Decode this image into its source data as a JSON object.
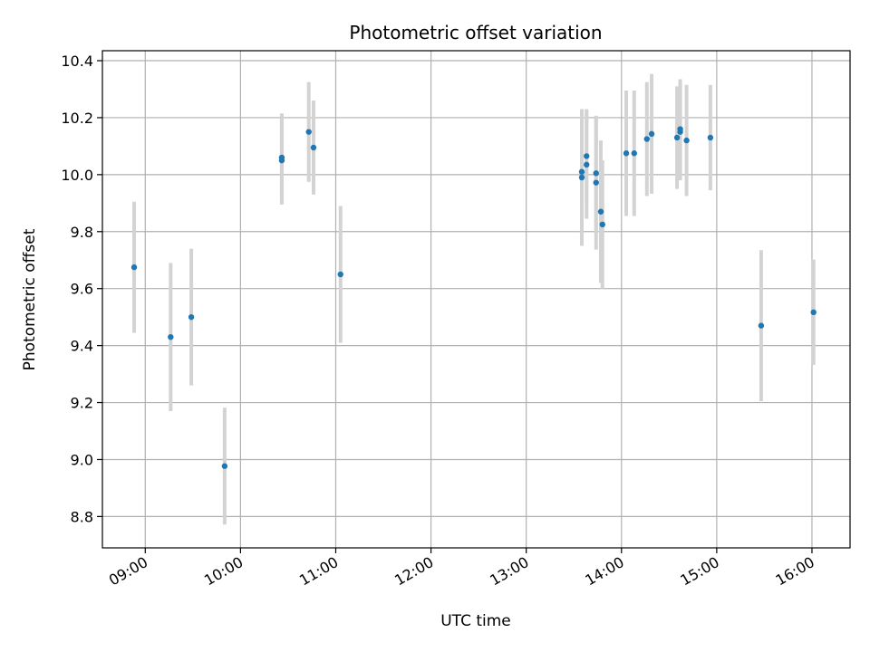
{
  "chart_data": {
    "type": "scatter",
    "title": "Photometric offset variation",
    "xlabel": "UTC time",
    "ylabel": "Photometric offset",
    "x_ticks": [
      "09:00",
      "10:00",
      "11:00",
      "12:00",
      "13:00",
      "14:00",
      "15:00",
      "16:00"
    ],
    "y_ticks": [
      "8.8",
      "9.0",
      "9.2",
      "9.4",
      "9.6",
      "9.8",
      "10.0",
      "10.2",
      "10.4"
    ],
    "xlim": [
      "08:33",
      "16:24"
    ],
    "ylim": [
      8.69,
      10.435
    ],
    "grid": true,
    "marker_color": "#1f77b4",
    "errorbar_color": "#d3d3d3",
    "points": [
      {
        "t": "08:53",
        "y": 9.675,
        "err": 0.23
      },
      {
        "t": "09:16",
        "y": 9.43,
        "err": 0.26
      },
      {
        "t": "09:29",
        "y": 9.5,
        "err": 0.24
      },
      {
        "t": "09:50",
        "y": 8.977,
        "err": 0.205
      },
      {
        "t": "10:26",
        "y": 10.06,
        "err": 0.155
      },
      {
        "t": "10:26",
        "y": 10.05,
        "err": 0.155
      },
      {
        "t": "10:43",
        "y": 10.15,
        "err": 0.175
      },
      {
        "t": "10:46",
        "y": 10.095,
        "err": 0.165
      },
      {
        "t": "11:03",
        "y": 9.65,
        "err": 0.24
      },
      {
        "t": "13:35",
        "y": 10.01,
        "err": 0.22
      },
      {
        "t": "13:35",
        "y": 9.99,
        "err": 0.24
      },
      {
        "t": "13:38",
        "y": 10.065,
        "err": 0.165
      },
      {
        "t": "13:38",
        "y": 10.035,
        "err": 0.19
      },
      {
        "t": "13:44",
        "y": 10.005,
        "err": 0.2
      },
      {
        "t": "13:44",
        "y": 9.972,
        "err": 0.235
      },
      {
        "t": "13:47",
        "y": 9.87,
        "err": 0.25
      },
      {
        "t": "13:48",
        "y": 9.825,
        "err": 0.225
      },
      {
        "t": "14:03",
        "y": 10.075,
        "err": 0.22
      },
      {
        "t": "14:08",
        "y": 10.075,
        "err": 0.22
      },
      {
        "t": "14:16",
        "y": 10.125,
        "err": 0.2
      },
      {
        "t": "14:19",
        "y": 10.143,
        "err": 0.21
      },
      {
        "t": "14:35",
        "y": 10.13,
        "err": 0.18
      },
      {
        "t": "14:37",
        "y": 10.16,
        "err": 0.175
      },
      {
        "t": "14:37",
        "y": 10.15,
        "err": 0.17
      },
      {
        "t": "14:41",
        "y": 10.12,
        "err": 0.195
      },
      {
        "t": "14:56",
        "y": 10.13,
        "err": 0.185
      },
      {
        "t": "15:28",
        "y": 9.47,
        "err": 0.265
      },
      {
        "t": "16:01",
        "y": 9.517,
        "err": 0.185
      }
    ]
  }
}
